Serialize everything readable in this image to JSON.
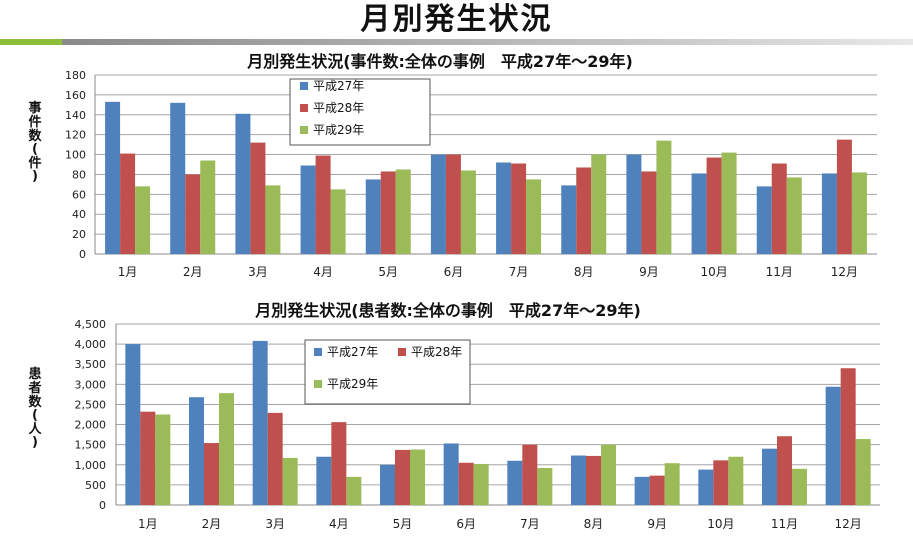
{
  "page_title": "月別発生状況",
  "colors": {
    "s27": "#4f81bd",
    "s28": "#c0504d",
    "s29": "#9bbb59"
  },
  "chart_data": [
    {
      "type": "bar",
      "title": "月別発生状況(事件数:全体の事例　平成27年～29年)",
      "ylabel": "事件数(件)",
      "categories": [
        "1月",
        "2月",
        "3月",
        "4月",
        "5月",
        "6月",
        "7月",
        "8月",
        "9月",
        "10月",
        "11月",
        "12月"
      ],
      "ylim": [
        0,
        180
      ],
      "yticks": [
        "0",
        "20",
        "40",
        "60",
        "80",
        "100",
        "120",
        "140",
        "160",
        "180"
      ],
      "grid": true,
      "legend_placement": "top-left",
      "legend_layout": "vertical",
      "series": [
        {
          "name": "平成27年",
          "values": [
            153,
            152,
            141,
            89,
            75,
            100,
            92,
            69,
            100,
            81,
            68,
            81
          ]
        },
        {
          "name": "平成28年",
          "values": [
            101,
            80,
            112,
            99,
            83,
            100,
            91,
            87,
            83,
            97,
            91,
            115
          ]
        },
        {
          "name": "平成29年",
          "values": [
            68,
            94,
            69,
            65,
            85,
            84,
            75,
            100,
            114,
            102,
            77,
            82
          ]
        }
      ]
    },
    {
      "type": "bar",
      "title": "月別発生状況(患者数:全体の事例　平成27年～29年)",
      "ylabel": "患者数(人)",
      "categories": [
        "1月",
        "2月",
        "3月",
        "4月",
        "5月",
        "6月",
        "7月",
        "8月",
        "9月",
        "10月",
        "11月",
        "12月"
      ],
      "ylim": [
        0,
        4500
      ],
      "yticks": [
        "0",
        "500",
        "1,000",
        "1,500",
        "2,000",
        "2,500",
        "3,000",
        "3,500",
        "4,000",
        "4,500"
      ],
      "grid": true,
      "legend_placement": "top-left",
      "legend_layout": "grid",
      "series": [
        {
          "name": "平成27年",
          "values": [
            4000,
            2680,
            4080,
            1200,
            1000,
            1530,
            1100,
            1230,
            700,
            880,
            1400,
            2940
          ]
        },
        {
          "name": "平成28年",
          "values": [
            2320,
            1540,
            2290,
            2060,
            1370,
            1050,
            1500,
            1220,
            730,
            1110,
            1710,
            3400
          ]
        },
        {
          "name": "平成29年",
          "values": [
            2250,
            2780,
            1170,
            700,
            1380,
            1020,
            920,
            1500,
            1040,
            1200,
            900,
            1640
          ]
        }
      ]
    }
  ]
}
